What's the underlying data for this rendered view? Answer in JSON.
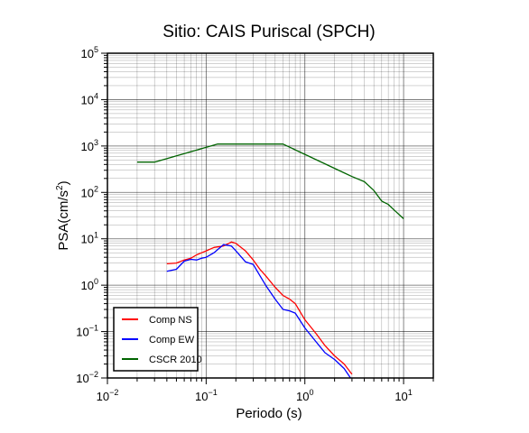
{
  "chart_data": {
    "type": "line",
    "title": "Sitio: CAIS Puriscal (SPCH)",
    "xlabel": "Periodo (s)",
    "ylabel_main": "PSA(cm/s",
    "ylabel_sup": "2",
    "ylabel_tail": ")",
    "x_scale": "log",
    "y_scale": "log",
    "xlim": [
      0.01,
      20
    ],
    "ylim": [
      0.01,
      100000
    ],
    "grid": true,
    "legend_position": "bottom-left",
    "x_ticks": [
      {
        "base": "10",
        "exp": "−2",
        "value": 0.01
      },
      {
        "base": "10",
        "exp": "−1",
        "value": 0.1
      },
      {
        "base": "10",
        "exp": "0",
        "value": 1
      },
      {
        "base": "10",
        "exp": "1",
        "value": 10
      }
    ],
    "y_ticks": [
      {
        "base": "10",
        "exp": "−2",
        "value": 0.01
      },
      {
        "base": "10",
        "exp": "−1",
        "value": 0.1
      },
      {
        "base": "10",
        "exp": "0",
        "value": 1
      },
      {
        "base": "10",
        "exp": "1",
        "value": 10
      },
      {
        "base": "10",
        "exp": "2",
        "value": 100
      },
      {
        "base": "10",
        "exp": "3",
        "value": 1000
      },
      {
        "base": "10",
        "exp": "4",
        "value": 10000
      },
      {
        "base": "10",
        "exp": "5",
        "value": 100000
      }
    ],
    "series": [
      {
        "name": "Comp NS",
        "color": "#ff0000",
        "x": [
          0.04,
          0.05,
          0.06,
          0.07,
          0.08,
          0.09,
          0.1,
          0.12,
          0.15,
          0.18,
          0.2,
          0.25,
          0.3,
          0.35,
          0.4,
          0.5,
          0.6,
          0.7,
          0.8,
          1.0,
          1.3,
          1.6,
          2.0,
          2.5,
          3.0
        ],
        "y": [
          2.9,
          3.0,
          3.5,
          3.8,
          4.5,
          5.0,
          5.5,
          6.5,
          7.0,
          8.5,
          8.0,
          5.5,
          3.5,
          2.2,
          1.6,
          0.9,
          0.6,
          0.5,
          0.4,
          0.18,
          0.09,
          0.05,
          0.03,
          0.02,
          0.012
        ]
      },
      {
        "name": "Comp EW",
        "color": "#0000ff",
        "x": [
          0.04,
          0.05,
          0.06,
          0.07,
          0.08,
          0.09,
          0.1,
          0.12,
          0.15,
          0.18,
          0.2,
          0.25,
          0.3,
          0.35,
          0.4,
          0.5,
          0.6,
          0.7,
          0.8,
          1.0,
          1.3,
          1.6,
          2.0,
          2.5,
          2.9
        ],
        "y": [
          2.0,
          2.2,
          3.3,
          3.6,
          3.5,
          3.8,
          4.0,
          5.0,
          7.5,
          7.0,
          5.5,
          3.2,
          2.8,
          1.6,
          1.0,
          0.5,
          0.3,
          0.28,
          0.25,
          0.12,
          0.06,
          0.035,
          0.025,
          0.016,
          0.01
        ]
      },
      {
        "name": "CSCR 2010",
        "color": "#006400",
        "x": [
          0.02,
          0.03,
          0.13,
          0.6,
          1.0,
          2.0,
          3.0,
          4.0,
          5.0,
          6.0,
          7.0,
          8.0,
          10.0
        ],
        "y": [
          450,
          450,
          1100,
          1100,
          660,
          330,
          220,
          170,
          110,
          65,
          55,
          42,
          27
        ]
      }
    ]
  }
}
